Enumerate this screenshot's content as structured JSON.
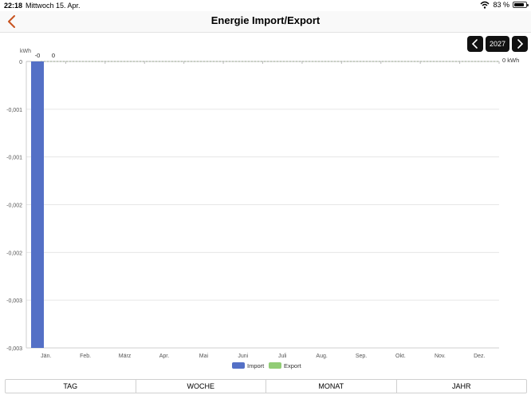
{
  "status": {
    "time": "22:18",
    "date": "Mittwoch 15. Apr.",
    "battery": "83 %",
    "battery_level": 0.83
  },
  "header": {
    "title": "Energie Import/Export",
    "back_icon": "chevron-left-icon"
  },
  "year_nav": {
    "prev_icon": "chevron-left-icon",
    "year": "2027",
    "next_icon": "chevron-right-icon"
  },
  "chart_data": {
    "type": "bar",
    "unit_label": "kWh",
    "right_label": "0 kWh",
    "categories": [
      "Jän.",
      "Feb.",
      "März",
      "Apr.",
      "Mai",
      "Juni",
      "Juli",
      "Aug.",
      "Sep.",
      "Okt.",
      "Nov.",
      "Dez."
    ],
    "y_ticks": [
      "0",
      "-0,001",
      "-0,001",
      "-0,002",
      "-0,002",
      "-0,003",
      "-0,003"
    ],
    "ylim": [
      -0.003,
      0
    ],
    "series": [
      {
        "name": "Import",
        "color": "#5470c6",
        "values": [
          -0.003,
          0,
          0,
          0,
          0,
          0,
          0,
          0,
          0,
          0,
          0,
          0
        ]
      },
      {
        "name": "Export",
        "color": "#91cc75",
        "values": [
          0,
          0,
          0,
          0,
          0,
          0,
          0,
          0,
          0,
          0,
          0,
          0
        ]
      }
    ],
    "top_labels": [
      "-0",
      "0"
    ],
    "legend": [
      "Import",
      "Export"
    ],
    "legend_position": "bottom-center",
    "grid": true
  },
  "tabs": [
    {
      "label": "TAG"
    },
    {
      "label": "WOCHE"
    },
    {
      "label": "MONAT"
    },
    {
      "label": "JAHR"
    }
  ]
}
